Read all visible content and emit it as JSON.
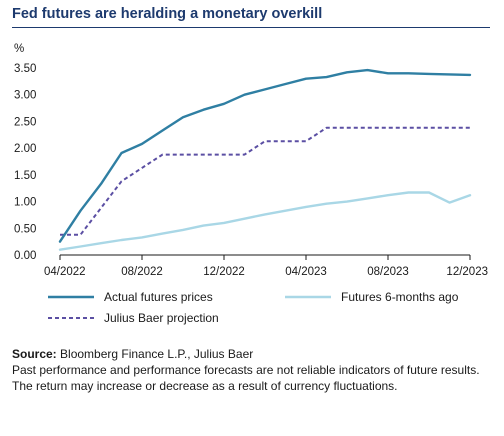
{
  "title": "Fed futures are heralding a monetary overkill",
  "footer": {
    "source_label": "Source:",
    "source_text": " Bloomberg Finance L.P., Julius Baer",
    "disclaimer": "Past performance and performance forecasts are not reliable indicators of future results. The return may increase or decrease as a result of currency fluctuations."
  },
  "colors": {
    "title": "#1d3a6e",
    "actual": "#2f7fa3",
    "futures_6m": "#a9d7e6",
    "projection": "#5b4fa3",
    "axis": "#1a1a1a"
  },
  "chart_data": {
    "type": "line",
    "title": "Fed futures are heralding a monetary overkill",
    "ylabel": "%",
    "xlabel": "",
    "ylim": [
      0,
      3.5
    ],
    "yticks": [
      "0.00",
      "0.50",
      "1.00",
      "1.50",
      "2.00",
      "2.50",
      "3.00",
      "3.50"
    ],
    "xlim": [
      "2022-04",
      "2023-12"
    ],
    "xticks": [
      "04/2022",
      "08/2022",
      "12/2022",
      "04/2023",
      "08/2023",
      "12/2023"
    ],
    "grid": false,
    "legend_position": "bottom",
    "x": [
      "2022-04",
      "2022-05",
      "2022-06",
      "2022-07",
      "2022-08",
      "2022-09",
      "2022-10",
      "2022-11",
      "2022-12",
      "2023-01",
      "2023-02",
      "2023-03",
      "2023-04",
      "2023-05",
      "2023-06",
      "2023-07",
      "2023-08",
      "2023-09",
      "2023-10",
      "2023-11",
      "2023-12"
    ],
    "series": [
      {
        "name": "Actual futures prices",
        "style": "solid",
        "color": "#2f7fa3",
        "values": [
          0.25,
          0.83,
          1.33,
          1.91,
          2.08,
          2.33,
          2.58,
          2.72,
          2.83,
          3.0,
          3.1,
          3.2,
          3.3,
          3.33,
          3.42,
          3.46,
          3.4,
          3.4,
          3.39,
          3.38,
          3.37
        ]
      },
      {
        "name": "Futures 6-months ago",
        "style": "solid",
        "color": "#a9d7e6",
        "values": [
          0.1,
          0.16,
          0.22,
          0.28,
          0.33,
          0.4,
          0.47,
          0.55,
          0.6,
          0.68,
          0.76,
          0.83,
          0.9,
          0.96,
          1.0,
          1.06,
          1.12,
          1.17,
          1.17,
          0.98,
          1.12
        ]
      },
      {
        "name": "Julius Baer projection",
        "style": "dashed",
        "color": "#5b4fa3",
        "values": [
          0.38,
          0.38,
          0.88,
          1.38,
          1.63,
          1.88,
          1.88,
          1.88,
          1.88,
          1.88,
          2.13,
          2.13,
          2.13,
          2.38,
          2.38,
          2.38,
          2.38,
          2.38,
          2.38,
          2.38,
          2.38
        ]
      }
    ]
  }
}
